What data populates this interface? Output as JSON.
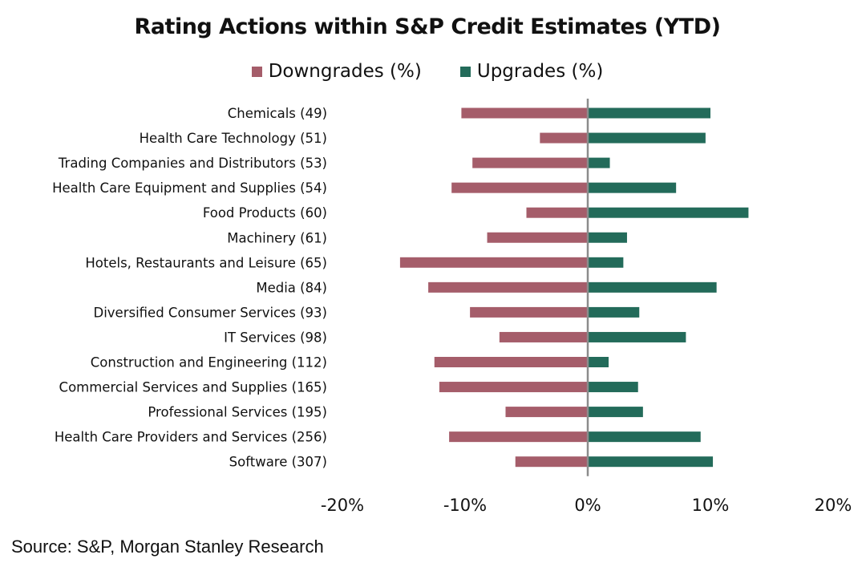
{
  "chart_data": {
    "type": "bar",
    "orientation": "horizontal",
    "title": "Rating Actions within S&P Credit Estimates (YTD)",
    "categories": [
      "Chemicals (49)",
      "Health Care Technology (51)",
      "Trading Companies and Distributors (53)",
      "Health Care Equipment and Supplies (54)",
      "Food Products (60)",
      "Machinery (61)",
      "Hotels, Restaurants and Leisure (65)",
      "Media (84)",
      "Diversified Consumer Services (93)",
      "IT Services (98)",
      "Construction and Engineering (112)",
      "Commercial Services and Supplies (165)",
      "Professional Services (195)",
      "Health Care Providers and Services (256)",
      "Software (307)"
    ],
    "series": [
      {
        "name": "Downgrades (%)",
        "color": "#a55d6a",
        "values": [
          -10.3,
          -3.9,
          -9.4,
          -11.1,
          -5.0,
          -8.2,
          -15.3,
          -13.0,
          -9.6,
          -7.2,
          -12.5,
          -12.1,
          -6.7,
          -11.3,
          -5.9
        ]
      },
      {
        "name": "Upgrades (%)",
        "color": "#236b5a",
        "values": [
          10.0,
          9.6,
          1.8,
          7.2,
          13.1,
          3.2,
          2.9,
          10.5,
          4.2,
          8.0,
          1.7,
          4.1,
          4.5,
          9.2,
          10.2
        ]
      }
    ],
    "xlim": [
      -20,
      20
    ],
    "xticks": [
      -20,
      -10,
      0,
      10,
      20
    ],
    "xtick_labels": [
      "-20%",
      "-10%",
      "0%",
      "10%",
      "20%"
    ],
    "xlabel": "",
    "ylabel": "",
    "grid": false,
    "legend_position": "top-center"
  },
  "source": "Source: S&P, Morgan Stanley Research"
}
